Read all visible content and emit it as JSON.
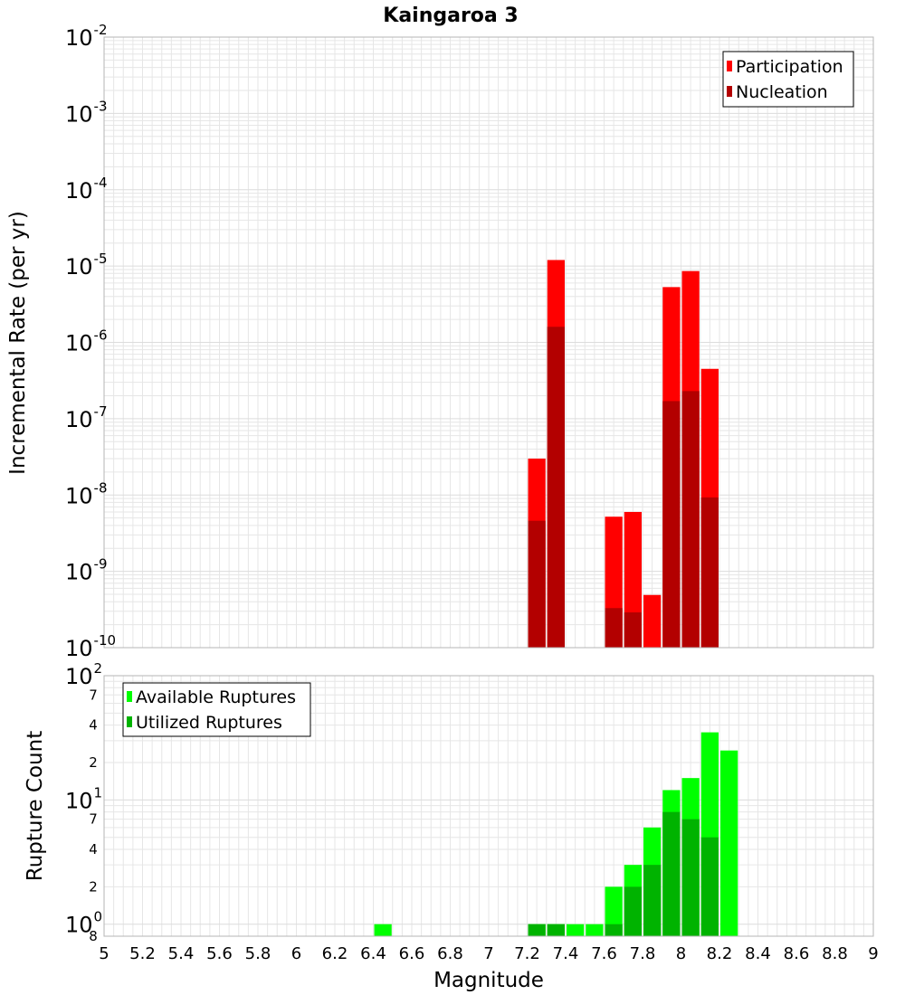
{
  "chart_data": [
    {
      "type": "bar",
      "title": "Kaingaroa 3",
      "ylabel": "Incremental Rate (per yr)",
      "xlabel": "",
      "xlim": [
        5,
        9
      ],
      "ylim": [
        1e-10,
        0.01
      ],
      "y_scale": "log",
      "grid": true,
      "legend_position": "top-right",
      "bin_width": 0.1,
      "x": [
        7.25,
        7.35,
        7.65,
        7.75,
        7.85,
        7.95,
        8.05,
        8.15
      ],
      "series": [
        {
          "name": "Participation",
          "color": "#ff0000",
          "values": [
            3e-08,
            1.2e-05,
            5.2e-09,
            6e-09,
            4.9e-10,
            5.3e-06,
            8.6e-06,
            4.5e-07
          ]
        },
        {
          "name": "Nucleation",
          "color": "#b30000",
          "values": [
            4.6e-09,
            1.6e-06,
            3.3e-10,
            2.9e-10,
            null,
            1.7e-07,
            2.3e-07,
            9.3e-09
          ]
        }
      ]
    },
    {
      "type": "bar",
      "title": "",
      "ylabel": "Rupture Count",
      "xlabel": "Magnitude",
      "xlim": [
        5,
        9
      ],
      "ylim": [
        0.8,
        100
      ],
      "y_scale": "log",
      "grid": true,
      "legend_position": "top-left",
      "bin_width": 0.1,
      "x": [
        6.45,
        7.25,
        7.35,
        7.45,
        7.55,
        7.65,
        7.75,
        7.85,
        7.95,
        8.05,
        8.15,
        8.25
      ],
      "series": [
        {
          "name": "Available Ruptures",
          "color": "#00ff00",
          "values": [
            1,
            1,
            1,
            1,
            1,
            2,
            3,
            6,
            12,
            15,
            35,
            25
          ]
        },
        {
          "name": "Utilized Ruptures",
          "color": "#00b300",
          "values": [
            null,
            1,
            1,
            null,
            null,
            1,
            2,
            3,
            8,
            7,
            5,
            null
          ]
        }
      ]
    }
  ],
  "x_ticks": [
    "5",
    "5.2",
    "5.4",
    "5.6",
    "5.8",
    "6",
    "6.2",
    "6.4",
    "6.6",
    "6.8",
    "7",
    "7.2",
    "7.4",
    "7.6",
    "7.8",
    "8",
    "8.2",
    "8.4",
    "8.6",
    "8.8",
    "9"
  ],
  "top_y_ticks": [
    {
      "base": "10",
      "exp": "-2"
    },
    {
      "base": "10",
      "exp": "-3"
    },
    {
      "base": "10",
      "exp": "-4"
    },
    {
      "base": "10",
      "exp": "-5"
    },
    {
      "base": "10",
      "exp": "-6"
    },
    {
      "base": "10",
      "exp": "-7"
    },
    {
      "base": "10",
      "exp": "-8"
    },
    {
      "base": "10",
      "exp": "-9"
    },
    {
      "base": "10",
      "exp": "-10"
    }
  ],
  "bottom_y_major": [
    {
      "base": "10",
      "exp": "2"
    },
    {
      "base": "10",
      "exp": "1"
    },
    {
      "base": "10",
      "exp": "0"
    }
  ],
  "bottom_y_minor": [
    "7",
    "4",
    "2",
    "7",
    "4",
    "2",
    "8"
  ]
}
